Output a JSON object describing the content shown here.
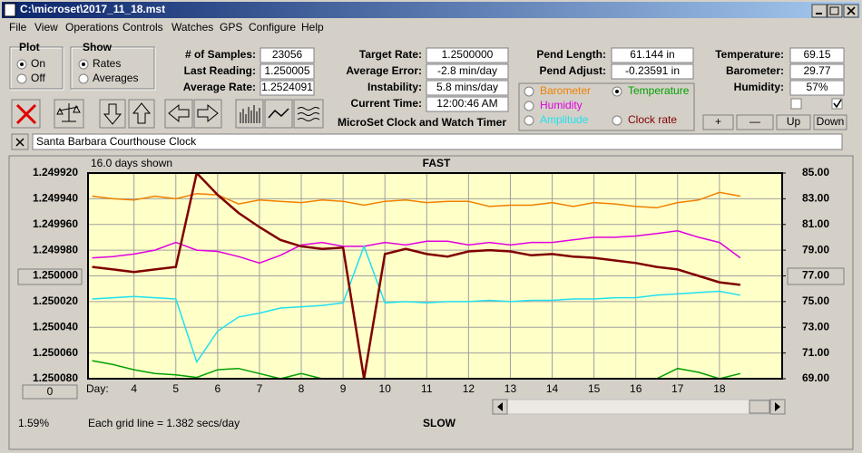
{
  "window": {
    "title": "C:\\microset\\2017_11_18.mst"
  },
  "menu": [
    "File",
    "View",
    "Operations",
    "Controls",
    "Watches",
    "GPS",
    "Configure",
    "Help"
  ],
  "plot_group": {
    "title": "Plot",
    "options": [
      "On",
      "Off"
    ],
    "checked": 0
  },
  "show_group": {
    "title": "Show",
    "options": [
      "Rates",
      "Averages"
    ],
    "checked": 0
  },
  "fields": [
    [
      {
        "label": "# of Samples:",
        "value": "23056"
      },
      {
        "label": "Last Reading:",
        "value": "1.250005"
      },
      {
        "label": "Average Rate:",
        "value": "1.2524091"
      }
    ],
    [
      {
        "label": "Target Rate:",
        "value": "1.2500000"
      },
      {
        "label": "Average Error:",
        "value": "-2.8 min/day"
      },
      {
        "label": "Instability:",
        "value": "5.8 mins/day"
      },
      {
        "label": "Current Time:",
        "value": "12:00:46 AM"
      }
    ],
    [
      {
        "label": "Pend Length:",
        "value": "61.144 in"
      },
      {
        "label": "Pend Adjust:",
        "value": "-0.23591 in"
      }
    ],
    [
      {
        "label": "Temperature:",
        "value": "69.15"
      },
      {
        "label": "Barometer:",
        "value": "29.77"
      },
      {
        "label": "Humidity:",
        "value": "57%"
      }
    ]
  ],
  "app_label": "MicroSet Clock and Watch Timer",
  "buttons": [
    "+",
    "—",
    "Up",
    "Down"
  ],
  "clock_name": "Santa Barbara Courthouse Clock",
  "chart_data": {
    "type": "line",
    "title": "FAST",
    "subtitle": "16.0 days shown",
    "bottom_title": "SLOW",
    "note": "Each grid line = 1.382 secs/day",
    "corner_label": "1.59%",
    "x_label": "Day:",
    "x_button": "0",
    "legend_checked": 1,
    "grid": true,
    "x": [
      3,
      3.5,
      4,
      4.5,
      5,
      5.5,
      6,
      6.5,
      7,
      7.5,
      8,
      8.5,
      9,
      9.5,
      10,
      10.5,
      11,
      11.5,
      12,
      12.5,
      13,
      13.5,
      14,
      14.5,
      15,
      15.5,
      16,
      16.5,
      17,
      17.5,
      18,
      18.5
    ],
    "xlim": [
      2.9,
      19.5
    ],
    "xticks": [
      4,
      5,
      6,
      7,
      8,
      9,
      10,
      11,
      12,
      13,
      14,
      15,
      16,
      17,
      18
    ],
    "ylim": [
      1.25008,
      1.24992
    ],
    "yticks": [
      {
        "value": 1.24992,
        "label": "1.249920"
      },
      {
        "value": 1.24994,
        "label": "1.249940"
      },
      {
        "value": 1.24996,
        "label": "1.249960"
      },
      {
        "value": 1.24998,
        "label": "1.249980"
      },
      {
        "value": 1.25,
        "label": "1.250000"
      },
      {
        "value": 1.25002,
        "label": "1.250020"
      },
      {
        "value": 1.25004,
        "label": "1.250040"
      },
      {
        "value": 1.25006,
        "label": "1.250060"
      },
      {
        "value": 1.25008,
        "label": "1.250080"
      }
    ],
    "y2lim": [
      69,
      85
    ],
    "y2ticks": [
      {
        "value": 85,
        "label": "85.00"
      },
      {
        "value": 83,
        "label": "83.00"
      },
      {
        "value": 81,
        "label": "81.00"
      },
      {
        "value": 79,
        "label": "79.00"
      },
      {
        "value": 77,
        "label": "77.00"
      },
      {
        "value": 75,
        "label": "75.00"
      },
      {
        "value": 73,
        "label": "73.00"
      },
      {
        "value": 71,
        "label": "71.00"
      },
      {
        "value": 69,
        "label": "69.00"
      }
    ],
    "series": [
      {
        "name": "Barometer",
        "color": "#f08000",
        "axis": "y2",
        "values": [
          83.2,
          83.0,
          82.9,
          83.2,
          83.0,
          83.4,
          83.3,
          82.6,
          82.9,
          82.8,
          82.7,
          82.9,
          82.8,
          82.5,
          82.8,
          82.9,
          82.7,
          82.8,
          82.8,
          82.4,
          82.5,
          82.5,
          82.7,
          82.4,
          82.7,
          82.6,
          82.4,
          82.3,
          82.7,
          82.9,
          83.5,
          83.2
        ]
      },
      {
        "name": "Temperature",
        "color": "#00a000",
        "axis": "y2",
        "values": [
          70.4,
          70.1,
          69.7,
          69.4,
          69.3,
          69.1,
          69.7,
          69.8,
          69.4,
          69,
          69.4,
          69,
          69,
          69,
          69,
          69,
          69,
          69,
          69,
          69,
          69,
          69,
          69,
          69,
          69,
          69,
          69,
          69,
          69.8,
          69.5,
          69,
          69.4
        ]
      },
      {
        "name": "Humidity",
        "color": "#e000e0",
        "axis": "y2",
        "values": [
          78.4,
          78.5,
          78.7,
          79.0,
          79.6,
          79.0,
          78.9,
          78.5,
          78.0,
          78.6,
          79.4,
          79.6,
          79.3,
          79.3,
          79.6,
          79.4,
          79.7,
          79.7,
          79.4,
          79.6,
          79.4,
          79.6,
          79.6,
          79.8,
          80.0,
          80.0,
          80.1,
          80.3,
          80.5,
          80.0,
          79.6,
          78.4
        ]
      },
      {
        "name": "Amplitude",
        "color": "#20e0f0",
        "axis": "y2",
        "values": [
          75.2,
          75.3,
          75.4,
          75.3,
          75.2,
          70.3,
          72.7,
          73.8,
          74.1,
          74.5,
          74.6,
          74.7,
          74.9,
          79.3,
          74.9,
          75.0,
          74.9,
          75.0,
          75.0,
          75.1,
          75.0,
          75.1,
          75.1,
          75.2,
          75.2,
          75.3,
          75.3,
          75.5,
          75.6,
          75.7,
          75.8,
          75.5
        ]
      },
      {
        "name": "Clock rate",
        "color": "#800000",
        "values": [
          1.249993,
          1.249995,
          1.249997,
          1.249995,
          1.249993,
          1.24992,
          1.249937,
          1.249951,
          1.249962,
          1.249972,
          1.249977,
          1.249979,
          1.249978,
          1.25008,
          1.249983,
          1.249979,
          1.249983,
          1.249985,
          1.249981,
          1.24998,
          1.249981,
          1.249984,
          1.249983,
          1.249985,
          1.249986,
          1.249988,
          1.24999,
          1.249993,
          1.249995,
          1.25,
          1.250005,
          1.250007
        ]
      }
    ]
  }
}
